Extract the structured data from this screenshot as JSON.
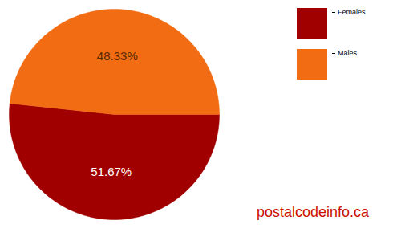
{
  "chart_data": {
    "type": "pie",
    "categories": [
      "Females",
      "Males"
    ],
    "values": [
      51.67,
      48.33
    ],
    "value_labels": [
      "51.67%",
      "48.33%"
    ],
    "colors": [
      "#a00000",
      "#f26c13"
    ],
    "data_labels": true,
    "legend": "top-right",
    "annotations": [
      "postalcodeinfo.ca"
    ]
  }
}
